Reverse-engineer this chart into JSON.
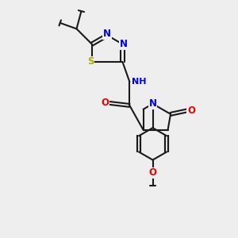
{
  "bg_color": "#eeeeee",
  "bond_color": "#1a1a1a",
  "line_width": 1.5,
  "atom_colors": {
    "N": "#0000ee",
    "O": "#ee0000",
    "S": "#aaaa00",
    "C": "#1a1a1a",
    "H": "#5a9a9a"
  },
  "font_size_atom": 8.5,
  "font_size_small": 7.0
}
